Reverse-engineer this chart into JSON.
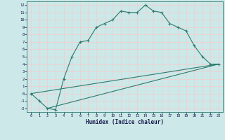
{
  "xlabel": "Humidex (Indice chaleur)",
  "bg_color": "#cce8e8",
  "line_color": "#2d7a6e",
  "grid_color": "#f0d0d0",
  "xlim": [
    -0.5,
    23.5
  ],
  "ylim": [
    -2.5,
    12.5
  ],
  "line1_x": [
    0,
    1,
    2,
    3,
    4,
    5,
    6,
    7,
    8,
    9,
    10,
    11,
    12,
    13,
    14,
    15,
    16,
    17,
    18,
    19,
    20,
    21,
    22,
    23
  ],
  "line1_y": [
    0,
    -1,
    -2,
    -2.2,
    2,
    5,
    7,
    7.2,
    9,
    9.5,
    10,
    11.2,
    11.0,
    11.0,
    12,
    11.2,
    11.0,
    9.5,
    9.0,
    8.5,
    6.5,
    5.0,
    4.0,
    4.0
  ],
  "line2_x": [
    0,
    23
  ],
  "line2_y": [
    0,
    4
  ],
  "line3_x": [
    2,
    23
  ],
  "line3_y": [
    -2,
    4
  ],
  "xticks": [
    0,
    1,
    2,
    3,
    4,
    5,
    6,
    7,
    8,
    9,
    10,
    11,
    12,
    13,
    14,
    15,
    16,
    17,
    18,
    19,
    20,
    21,
    22,
    23
  ],
  "yticks": [
    -2,
    -1,
    0,
    1,
    2,
    3,
    4,
    5,
    6,
    7,
    8,
    9,
    10,
    11,
    12
  ]
}
